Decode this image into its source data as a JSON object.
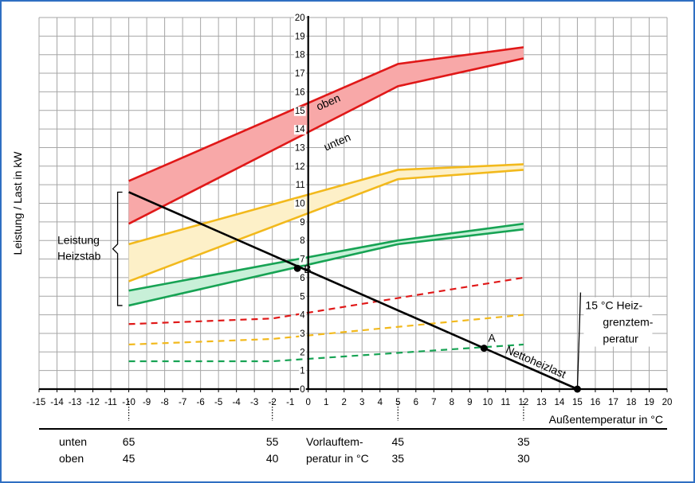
{
  "chart_data": {
    "type": "line",
    "ylabel": "Leistung / Last in kW",
    "xlabel": "Außentemperatur in °C",
    "xlim": [
      -15,
      20
    ],
    "ylim": [
      0,
      20
    ],
    "x_ticks": [
      -15,
      -14,
      -13,
      -12,
      -11,
      -10,
      -9,
      -8,
      -7,
      -6,
      -5,
      -4,
      -3,
      -2,
      -1,
      0,
      1,
      2,
      3,
      4,
      5,
      6,
      7,
      8,
      9,
      10,
      11,
      12,
      13,
      14,
      15,
      16,
      17,
      18,
      19,
      20
    ],
    "y_ticks": [
      0,
      1,
      2,
      3,
      4,
      5,
      6,
      7,
      8,
      9,
      10,
      11,
      12,
      13,
      14,
      15,
      16,
      17,
      18,
      19,
      20
    ],
    "grid": true,
    "colors": {
      "red": "#e01818",
      "yellow": "#f2b91c",
      "green": "#17a354",
      "black": "#000000",
      "red_fill": "#f8a8a8",
      "yellow_fill": "#fdf0c8",
      "green_fill": "#c8f0d8",
      "frame": "#2f6fc2"
    },
    "bands": [
      {
        "color": "red",
        "upper": {
          "label": "oben",
          "x": [
            -10,
            5,
            12
          ],
          "y": [
            11.2,
            17.5,
            18.4
          ]
        },
        "lower": {
          "label": "unten",
          "x": [
            -10,
            5,
            12
          ],
          "y": [
            8.9,
            16.3,
            17.8
          ]
        }
      },
      {
        "color": "yellow",
        "upper": {
          "x": [
            -10,
            5,
            12
          ],
          "y": [
            7.8,
            11.8,
            12.1
          ]
        },
        "lower": {
          "x": [
            -10,
            5,
            12
          ],
          "y": [
            5.8,
            11.3,
            11.8
          ]
        }
      },
      {
        "color": "green",
        "upper": {
          "x": [
            -10,
            5,
            12
          ],
          "y": [
            5.3,
            8.0,
            8.9
          ]
        },
        "lower": {
          "x": [
            -10,
            5,
            12
          ],
          "y": [
            4.5,
            7.8,
            8.6
          ]
        }
      }
    ],
    "dashed_series": [
      {
        "color": "red",
        "x": [
          -10,
          -2,
          12
        ],
        "y": [
          3.5,
          3.8,
          6.0
        ]
      },
      {
        "color": "yellow",
        "x": [
          -10,
          -2,
          12
        ],
        "y": [
          2.4,
          2.7,
          4.0
        ]
      },
      {
        "color": "green",
        "x": [
          -10,
          -2,
          12
        ],
        "y": [
          1.5,
          1.5,
          2.4
        ]
      }
    ],
    "net_load": {
      "label": "Nettoheizlast",
      "x": [
        -10,
        15
      ],
      "y": [
        10.6,
        0
      ]
    },
    "points": [
      {
        "label": "A",
        "x": 9.8,
        "y": 2.2
      },
      {
        "label": "B",
        "x": -0.6,
        "y": 6.5
      },
      {
        "label": "",
        "x": 15,
        "y": 0
      }
    ],
    "annotations": {
      "heizstab": [
        "Leistung",
        "Heizstab"
      ],
      "heizstab_range": [
        4.5,
        10.6
      ],
      "grenztemp": [
        "15 °C Heiz-",
        "grenztem-",
        "peratur"
      ]
    },
    "vorlauf_table": {
      "row_labels": [
        "unten",
        "oben"
      ],
      "columns": [
        {
          "x": -10,
          "values": [
            "65",
            "45"
          ]
        },
        {
          "x": -2,
          "values": [
            "55",
            "40"
          ]
        },
        {
          "x": 5,
          "values": [
            "45",
            "35"
          ]
        },
        {
          "x": 12,
          "values": [
            "35",
            "30"
          ]
        }
      ],
      "caption": [
        "Vorlauftem-",
        "peratur in °C"
      ]
    }
  }
}
